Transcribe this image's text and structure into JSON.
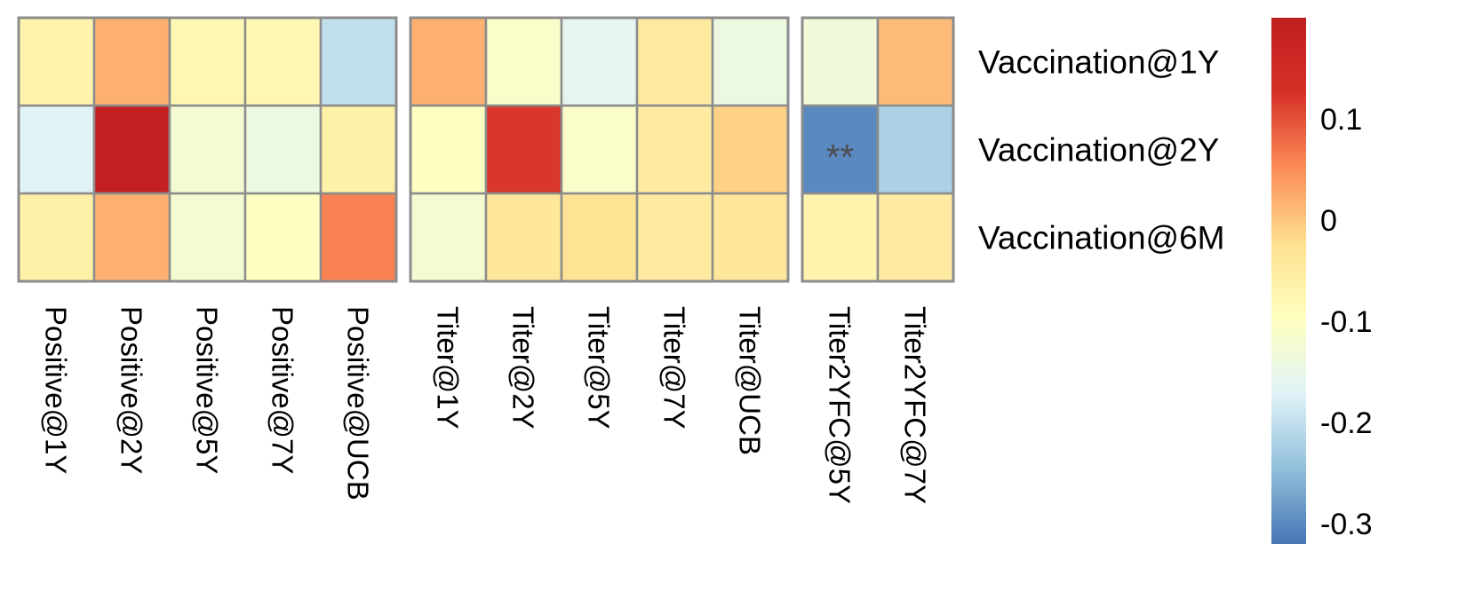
{
  "chart_data": {
    "type": "heatmap",
    "title": "",
    "rows": [
      "Vaccination@1Y",
      "Vaccination@2Y",
      "Vaccination@6M"
    ],
    "column_groups": [
      {
        "columns": [
          "Positive@1Y",
          "Positive@2Y",
          "Positive@5Y",
          "Positive@7Y",
          "Positive@UCB"
        ],
        "values": [
          [
            -0.07,
            0.02,
            -0.08,
            -0.08,
            -0.2
          ],
          [
            -0.17,
            0.19,
            -0.12,
            -0.14,
            -0.06
          ],
          [
            -0.06,
            0.02,
            -0.12,
            -0.1,
            0.06
          ]
        ]
      },
      {
        "columns": [
          "Titer@1Y",
          "Titer@2Y",
          "Titer@5Y",
          "Titer@7Y",
          "Titer@UCB"
        ],
        "values": [
          [
            0.02,
            -0.11,
            -0.16,
            -0.05,
            -0.14
          ],
          [
            -0.1,
            0.12,
            -0.11,
            -0.05,
            -0.01
          ],
          [
            -0.12,
            -0.04,
            -0.03,
            -0.05,
            -0.04
          ]
        ]
      },
      {
        "columns": [
          "Titer2YFC@5Y",
          "Titer2YFC@7Y"
        ],
        "values": [
          [
            -0.13,
            0.01
          ],
          [
            -0.3,
            -0.22
          ],
          [
            -0.07,
            -0.05
          ]
        ]
      }
    ],
    "annotations": [
      {
        "row": "Vaccination@2Y",
        "column": "Titer2YFC@5Y",
        "text": "**"
      }
    ],
    "color_scale": {
      "min": -0.32,
      "max": 0.2,
      "stops": [
        "#4575b4",
        "#91bfdb",
        "#e0f3f8",
        "#ffffbf",
        "#fee090",
        "#fc8d59",
        "#d73027",
        "#c01f20"
      ],
      "ticks": [
        0.1,
        0,
        -0.1,
        -0.2,
        -0.3
      ],
      "tick_labels": [
        "0.1",
        "0",
        "-0.1",
        "-0.2",
        "-0.3"
      ]
    },
    "legend_placement": "right",
    "grid": false
  }
}
